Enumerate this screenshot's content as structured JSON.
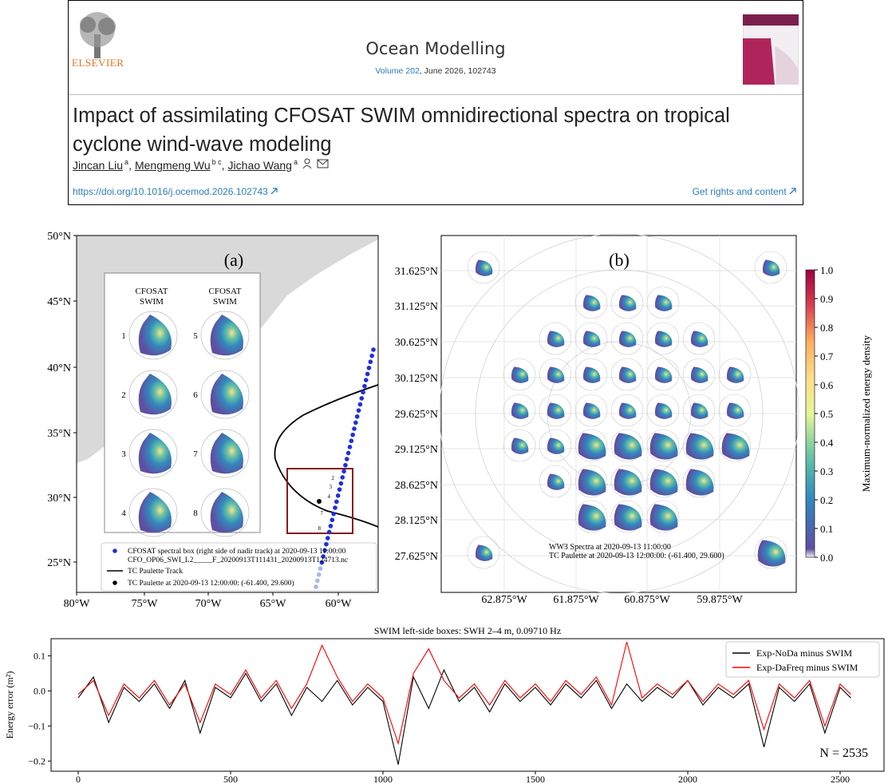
{
  "header": {
    "publisher": "ELSEVIER",
    "journal": "Ocean Modelling",
    "volume": "Volume 202",
    "issue": ", June 2026, 102743",
    "title": "Impact of assimilating CFOSAT SWIM omnidirectional spectra on tropical cyclone wind-wave modeling",
    "authors": [
      {
        "name": "Jincan Liu",
        "affil": "a"
      },
      {
        "name": "Mengmeng Wu",
        "affil": "b c"
      },
      {
        "name": "Jichao Wang",
        "affil": "a"
      }
    ],
    "doi": "https://doi.org/10.1016/j.ocemod.2026.102743",
    "rights": "Get rights and content"
  },
  "figure_a": {
    "label": "(a)",
    "yticks": [
      "50°N",
      "45°N",
      "40°N",
      "35°N",
      "30°N",
      "25°N"
    ],
    "xticks": [
      "80°W",
      "75°W",
      "70°W",
      "65°W",
      "60°W"
    ],
    "inset_headers": [
      [
        "CFOSAT",
        "SWIM"
      ],
      [
        "CFOSAT",
        "SWIM"
      ]
    ],
    "inset_labels": [
      "1",
      "2",
      "3",
      "4",
      "5",
      "6",
      "7",
      "8"
    ],
    "track_labels": [
      "2",
      "3",
      "4",
      "7",
      "8"
    ],
    "legend": [
      "CFOSAT spectral box (right side of nadir track) at 2020-09-13 11:00:00",
      "CFO_OP06_SWI_L2_____F_20200913T111431_20200913T124713.nc",
      "TC Paulette Track",
      "TC Paulette at 2020-09-13 12:00:00: (-61.400, 29.600)"
    ]
  },
  "figure_b": {
    "label": "(b)",
    "yticks": [
      "31.625°N",
      "31.125°N",
      "30.625°N",
      "30.125°N",
      "29.625°N",
      "29.125°N",
      "28.625°N",
      "28.125°N",
      "27.625°N"
    ],
    "xticks": [
      "62.875°W",
      "61.875°W",
      "60.875°W",
      "59.875°W"
    ],
    "colorbar_ticks": [
      "1.0",
      "0.9",
      "0.8",
      "0.7",
      "0.6",
      "0.5",
      "0.4",
      "0.3",
      "0.2",
      "0.1",
      "0.0"
    ],
    "colorbar_label": "Maximum-normalized energy density",
    "annotation": [
      "WW3 Spectra at 2020-09-13 11:00:00",
      "TC Paulette at 2020-09-13 12:00:00: (-61.400, 29.600)"
    ]
  },
  "chart_data": {
    "type": "line",
    "title": "SWIM left-side boxes: SWH 2–4 m, 0.09710 Hz",
    "y_label": "Energy error (m²)",
    "annotation": "N = 2535",
    "legend_position": "upper right",
    "xlim": [
      -89,
      2644
    ],
    "ylim": [
      -0.229,
      0.149
    ],
    "xticks": [
      0,
      500,
      1000,
      1500,
      2000,
      2500
    ],
    "yticks": [
      0.1,
      {
        "value": 0,
        "label": "0.0"
      },
      {
        "value": -0.1,
        "label": "−0.1"
      },
      {
        "value": -0.2,
        "label": "−0.2"
      }
    ],
    "x": [
      0,
      50,
      100,
      150,
      200,
      250,
      300,
      350,
      400,
      450,
      500,
      550,
      600,
      650,
      700,
      750,
      800,
      850,
      900,
      950,
      1000,
      1050,
      1100,
      1150,
      1200,
      1250,
      1300,
      1350,
      1400,
      1450,
      1500,
      1550,
      1600,
      1650,
      1700,
      1750,
      1800,
      1850,
      1900,
      1950,
      2000,
      2050,
      2100,
      2150,
      2200,
      2250,
      2300,
      2350,
      2400,
      2450,
      2500,
      2535
    ],
    "series": [
      {
        "name": "Exp-NoDa minus SWIM",
        "color": "#000000",
        "values": [
          -0.02,
          0.04,
          -0.09,
          0.01,
          -0.03,
          0.02,
          -0.05,
          0.03,
          -0.12,
          0.01,
          -0.02,
          0.05,
          -0.03,
          0.02,
          -0.07,
          0.01,
          -0.03,
          0.03,
          -0.04,
          0.01,
          -0.03,
          -0.21,
          0.04,
          -0.05,
          0.06,
          -0.03,
          0.01,
          -0.06,
          0.02,
          -0.03,
          0.01,
          -0.04,
          0.02,
          -0.02,
          0.03,
          -0.05,
          0.02,
          -0.03,
          0.01,
          -0.02,
          0.03,
          -0.04,
          0.01,
          -0.02,
          0.02,
          -0.16,
          0.01,
          -0.03,
          0.02,
          -0.12,
          0.01,
          -0.02
        ]
      },
      {
        "name": "Exp-DaFreq minus SWIM",
        "color": "#ff0000",
        "values": [
          -0.01,
          0.03,
          -0.07,
          0.02,
          -0.02,
          0.03,
          -0.04,
          0.02,
          -0.09,
          0.02,
          -0.01,
          0.06,
          -0.02,
          0.03,
          -0.05,
          0.02,
          0.13,
          0.04,
          -0.03,
          0.02,
          -0.02,
          -0.15,
          0.05,
          0.12,
          0.03,
          -0.02,
          0.02,
          -0.04,
          0.03,
          -0.02,
          0.02,
          -0.03,
          0.03,
          -0.01,
          0.04,
          -0.04,
          0.14,
          -0.02,
          0.02,
          -0.01,
          0.03,
          -0.03,
          0.02,
          -0.01,
          0.03,
          -0.11,
          0.02,
          -0.02,
          0.03,
          -0.1,
          0.02,
          -0.01
        ]
      }
    ]
  }
}
